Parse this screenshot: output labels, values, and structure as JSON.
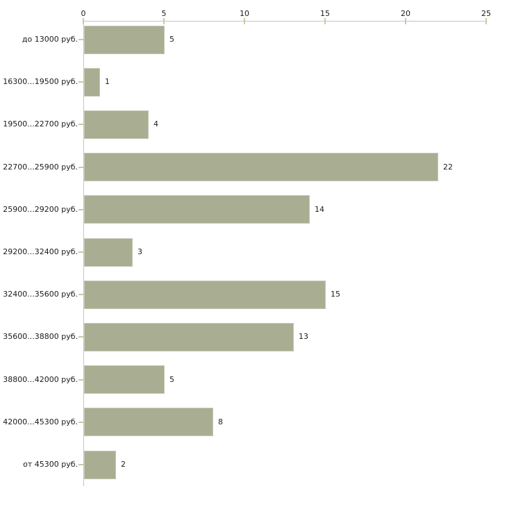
{
  "chart_data": {
    "type": "bar",
    "orientation": "horizontal",
    "title": "",
    "xlabel": "",
    "ylabel": "",
    "categories": [
      "до 13000 руб.",
      "16300...19500 руб.",
      "19500...22700 руб.",
      "22700...25900 руб.",
      "25900...29200 руб.",
      "29200...32400 руб.",
      "32400...35600 руб.",
      "35600...38800 руб.",
      "38800...42000 руб.",
      "42000...45300 руб.",
      "от 45300 руб."
    ],
    "values": [
      5,
      1,
      4,
      22,
      14,
      3,
      15,
      13,
      5,
      8,
      2
    ],
    "xlim": [
      0,
      25
    ],
    "x_ticks": [
      0,
      5,
      10,
      15,
      20,
      25
    ],
    "x_axis_position": "top",
    "grid": false,
    "value_labels_shown": true,
    "legend": "none",
    "colors": {
      "bar_fill": "#a9ae93",
      "bar_border": "#c5c8b4",
      "axis_line": "#c4c4c4",
      "tick_mark": "#c9c9a2",
      "text": "#1a1a1a",
      "background": "#ffffff"
    }
  }
}
